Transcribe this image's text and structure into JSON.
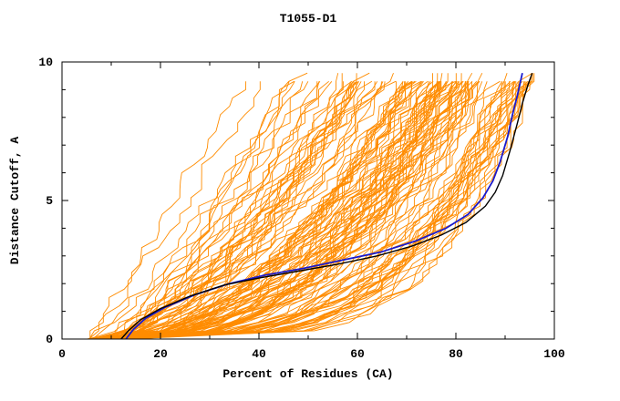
{
  "chart_data": {
    "type": "line",
    "title": "T1055-D1",
    "xlabel": "Percent of Residues (CA)",
    "ylabel": "Distance Cutoff, A",
    "xlim": [
      0,
      100
    ],
    "ylim": [
      0,
      10
    ],
    "x_major_ticks": [
      0,
      20,
      40,
      60,
      80,
      100
    ],
    "x_minor_step": 10,
    "y_major_ticks": [
      0,
      5,
      10
    ],
    "y_minor_step": 1,
    "grid": false,
    "legend": "none",
    "colors": {
      "ensemble": "#ff8c00",
      "highlight_blue": "#1a1acd",
      "highlight_black": "#000000",
      "axis": "#000000",
      "background": "#ffffff"
    },
    "ensemble": {
      "description": "Family of predicted-model cumulative distance-cutoff curves (orange); individual curves estimated, drawn from generation spec below",
      "count": 130,
      "seed": 42,
      "x_start_range": [
        5,
        14
      ],
      "end_percent_range": [
        30,
        97
      ],
      "end_percent_bias_exponent": 0.5,
      "curve_shape": "power",
      "y_step": 0.3,
      "y_top_range": [
        9.3,
        9.65
      ],
      "jitter_percent": 3.5
    },
    "series": [
      {
        "name": "highlighted-model-blue",
        "color": "#1a1acd",
        "width": 1.8,
        "points": [
          [
            13,
            0
          ],
          [
            14.5,
            0.35
          ],
          [
            17,
            0.75
          ],
          [
            21,
            1.15
          ],
          [
            27,
            1.6
          ],
          [
            34,
            2.0
          ],
          [
            41,
            2.3
          ],
          [
            49,
            2.55
          ],
          [
            57,
            2.85
          ],
          [
            65,
            3.15
          ],
          [
            72,
            3.55
          ],
          [
            78,
            4.0
          ],
          [
            82.5,
            4.5
          ],
          [
            85.5,
            5.1
          ],
          [
            87.5,
            5.7
          ],
          [
            89,
            6.4
          ],
          [
            90.5,
            7.3
          ],
          [
            91.5,
            8.1
          ],
          [
            92.5,
            8.8
          ],
          [
            93.5,
            9.6
          ]
        ]
      },
      {
        "name": "highlighted-model-black",
        "color": "#000000",
        "width": 1.4,
        "points": [
          [
            12,
            0
          ],
          [
            13.5,
            0.3
          ],
          [
            16,
            0.7
          ],
          [
            20,
            1.1
          ],
          [
            26,
            1.55
          ],
          [
            33,
            1.95
          ],
          [
            40,
            2.2
          ],
          [
            48,
            2.45
          ],
          [
            56,
            2.7
          ],
          [
            64,
            3.0
          ],
          [
            71,
            3.35
          ],
          [
            77,
            3.75
          ],
          [
            82,
            4.2
          ],
          [
            86,
            4.8
          ],
          [
            88,
            5.3
          ],
          [
            89.5,
            5.9
          ],
          [
            91,
            6.8
          ],
          [
            92.5,
            7.8
          ],
          [
            93.5,
            8.5
          ],
          [
            94.5,
            9.1
          ],
          [
            95.5,
            9.6
          ]
        ]
      }
    ]
  }
}
